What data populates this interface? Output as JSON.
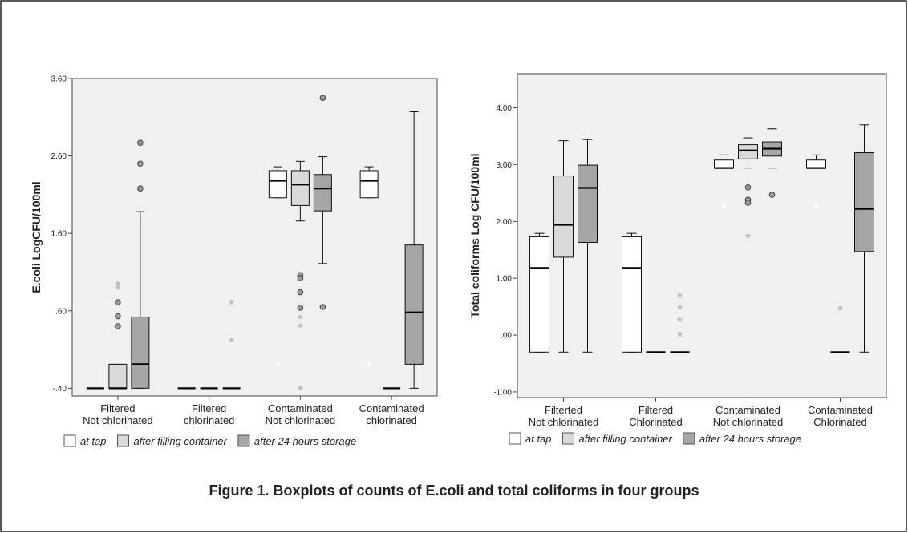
{
  "caption": "Figure 1. Boxplots of counts of E.coli and total coliforms in four groups",
  "chart_data": [
    {
      "type": "box",
      "y_label": "E.coli LogCFU/100ml",
      "categories": [
        [
          "Filtered",
          "Not chlorinated"
        ],
        [
          "Filtered",
          "chlorinated"
        ],
        [
          "Contaminated",
          "Not chlorinated"
        ],
        [
          "Contaminated",
          "chlorinated"
        ]
      ],
      "ylim": [
        -0.5,
        3.6
      ],
      "yticks": [
        {
          "value": 3.6,
          "label": "3.60"
        },
        {
          "value": 2.6,
          "label": "2.60"
        },
        {
          "value": 1.6,
          "label": "1.60"
        },
        {
          "value": 0.6,
          "label": ".60"
        },
        {
          "value": -0.4,
          "label": "-.40"
        }
      ],
      "series": [
        {
          "name": "at tap",
          "color": "#ffffff",
          "values": [
            {
              "min": -0.4,
              "q1": -0.4,
              "median": -0.4,
              "q3": -0.4,
              "max": -0.4,
              "outliers": [],
              "extremes": []
            },
            {
              "min": -0.4,
              "q1": -0.4,
              "median": -0.4,
              "q3": -0.4,
              "max": -0.4,
              "outliers": [],
              "extremes": []
            },
            {
              "min": 2.06,
              "q1": 2.06,
              "median": 2.28,
              "q3": 2.41,
              "max": 2.46,
              "outliers": [],
              "extremes": [
                -0.09
              ]
            },
            {
              "min": 2.06,
              "q1": 2.06,
              "median": 2.28,
              "q3": 2.41,
              "max": 2.46,
              "outliers": [],
              "extremes": [
                -0.09
              ]
            }
          ]
        },
        {
          "name": "after filling container",
          "color": "#d9d9d9",
          "values": [
            {
              "min": -0.4,
              "q1": -0.4,
              "median": -0.4,
              "q3": -0.09,
              "max": -0.09,
              "outliers": [
                0.71,
                0.53,
                0.4
              ],
              "extremes": [
                0.95,
                0.9
              ]
            },
            {
              "min": -0.4,
              "q1": -0.4,
              "median": -0.4,
              "q3": -0.4,
              "max": -0.4,
              "outliers": [],
              "extremes": []
            },
            {
              "min": 1.76,
              "q1": 1.96,
              "median": 2.23,
              "q3": 2.41,
              "max": 2.53,
              "outliers": [
                1.06,
                1.02,
                0.84,
                0.64
              ],
              "extremes": [
                0.52,
                0.41,
                -0.4
              ]
            },
            {
              "min": -0.4,
              "q1": -0.4,
              "median": -0.4,
              "q3": -0.4,
              "max": -0.4,
              "outliers": [],
              "extremes": []
            }
          ]
        },
        {
          "name": "after 24 hours storage",
          "color": "#a6a6a6",
          "values": [
            {
              "min": -0.4,
              "q1": -0.4,
              "median": -0.09,
              "q3": 0.52,
              "max": 1.88,
              "outliers": [
                2.18,
                2.5,
                2.77
              ],
              "extremes": []
            },
            {
              "min": -0.4,
              "q1": -0.4,
              "median": -0.4,
              "q3": -0.4,
              "max": -0.4,
              "outliers": [],
              "extremes": [
                0.71,
                0.22
              ]
            },
            {
              "min": 1.21,
              "q1": 1.89,
              "median": 2.18,
              "q3": 2.36,
              "max": 2.59,
              "outliers": [
                0.65,
                3.35
              ],
              "extremes": []
            },
            {
              "min": -0.4,
              "q1": -0.09,
              "median": 0.58,
              "q3": 1.45,
              "max": 3.17,
              "outliers": [],
              "extremes": []
            }
          ]
        }
      ]
    },
    {
      "type": "box",
      "y_label": "Total coliforms Log CFU/100ml",
      "categories": [
        [
          "Filterted",
          "Not chlorinated"
        ],
        [
          "Filtered",
          "Chlorinated"
        ],
        [
          "Contaminated",
          "Not chlorinated"
        ],
        [
          "Contaminated",
          "Chlorinated"
        ]
      ],
      "ylim": [
        -1.1,
        4.6
      ],
      "yticks": [
        {
          "value": 4,
          "label": "4.00"
        },
        {
          "value": 3,
          "label": "3.00"
        },
        {
          "value": 2,
          "label": "2.00"
        },
        {
          "value": 1,
          "label": "1.00"
        },
        {
          "value": 0,
          "label": ".00"
        },
        {
          "value": -1,
          "label": "-1.00"
        }
      ],
      "series": [
        {
          "name": "at tap",
          "color": "#ffffff",
          "values": [
            {
              "min": -0.3,
              "q1": -0.3,
              "median": 1.18,
              "q3": 1.73,
              "max": 1.79,
              "outliers": [],
              "extremes": []
            },
            {
              "min": -0.3,
              "q1": -0.3,
              "median": 1.18,
              "q3": 1.73,
              "max": 1.79,
              "outliers": [],
              "extremes": []
            },
            {
              "min": 2.94,
              "q1": 2.94,
              "median": 2.94,
              "q3": 3.08,
              "max": 3.17,
              "outliers": [],
              "extremes": [
                2.28
              ]
            },
            {
              "min": 2.94,
              "q1": 2.94,
              "median": 2.94,
              "q3": 3.08,
              "max": 3.17,
              "outliers": [],
              "extremes": [
                2.28
              ]
            }
          ]
        },
        {
          "name": "after filling container",
          "color": "#d9d9d9",
          "values": [
            {
              "min": -0.3,
              "q1": 1.37,
              "median": 1.94,
              "q3": 2.8,
              "max": 3.42,
              "outliers": [],
              "extremes": []
            },
            {
              "min": -0.3,
              "q1": -0.3,
              "median": -0.3,
              "q3": -0.3,
              "max": -0.3,
              "outliers": [],
              "extremes": []
            },
            {
              "min": 2.94,
              "q1": 3.1,
              "median": 3.25,
              "q3": 3.35,
              "max": 3.47,
              "outliers": [
                2.6,
                2.38,
                2.33
              ],
              "extremes": [
                1.75
              ]
            },
            {
              "min": -0.3,
              "q1": -0.3,
              "median": -0.3,
              "q3": -0.3,
              "max": -0.3,
              "outliers": [],
              "extremes": [
                0.47
              ]
            }
          ]
        },
        {
          "name": "after 24 hours storage",
          "color": "#a6a6a6",
          "values": [
            {
              "min": -0.3,
              "q1": 1.63,
              "median": 2.59,
              "q3": 2.99,
              "max": 3.44,
              "outliers": [],
              "extremes": []
            },
            {
              "min": -0.3,
              "q1": -0.3,
              "median": -0.3,
              "q3": -0.3,
              "max": -0.3,
              "outliers": [],
              "extremes": [
                0.7,
                0.49,
                0.27,
                0.01
              ]
            },
            {
              "min": 2.94,
              "q1": 3.15,
              "median": 3.28,
              "q3": 3.4,
              "max": 3.63,
              "outliers": [
                2.47
              ],
              "extremes": []
            },
            {
              "min": -0.3,
              "q1": 1.47,
              "median": 2.22,
              "q3": 3.21,
              "max": 3.7,
              "outliers": [],
              "extremes": []
            }
          ]
        }
      ]
    }
  ]
}
